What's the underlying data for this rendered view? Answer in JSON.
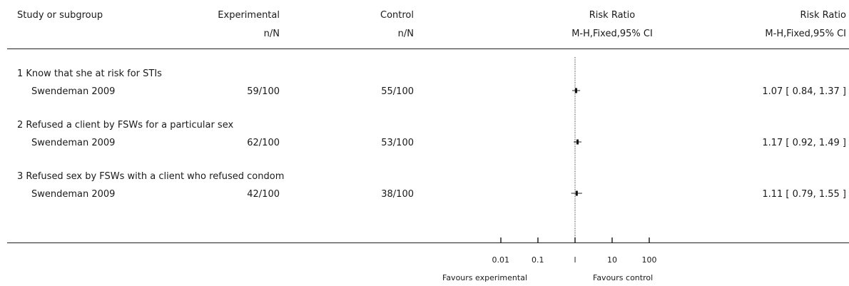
{
  "header": {
    "col_study": "Study or subgroup",
    "col_exp": "Experimental",
    "col_exp_sub": "n/N",
    "col_ctrl": "Control",
    "col_ctrl_sub": "n/N",
    "col_rr_plot": "Risk Ratio",
    "col_rr_plot_sub": "M-H,Fixed,95% CI",
    "col_rr": "Risk Ratio",
    "col_rr_sub": "M-H,Fixed,95% CI"
  },
  "chart_data": {
    "type": "forest",
    "scale": "log",
    "xlim": [
      0.01,
      100
    ],
    "ticks": [
      "0.01",
      "0.1",
      "1",
      "10",
      "100"
    ],
    "tick_labels": [
      "0.01",
      "0.1",
      "l",
      "10",
      "100"
    ],
    "favours_left": "Favours experimental",
    "favours_right": "Favours control",
    "subgroups": [
      {
        "label": "1 Know that she at risk for STIs",
        "study": "Swendeman 2009",
        "experimental": "59/100",
        "control": "55/100",
        "rr": 1.07,
        "lo": 0.84,
        "hi": 1.37,
        "rr_text": "1.07 [ 0.84, 1.37 ]"
      },
      {
        "label": "2 Refused a client by FSWs for a particular sex",
        "study": "Swendeman 2009",
        "experimental": "62/100",
        "control": "53/100",
        "rr": 1.17,
        "lo": 0.92,
        "hi": 1.49,
        "rr_text": "1.17 [ 0.92, 1.49 ]"
      },
      {
        "label": "3 Refused sex by FSWs with a client who refused condom",
        "study": "Swendeman 2009",
        "experimental": "42/100",
        "control": "38/100",
        "rr": 1.11,
        "lo": 0.79,
        "hi": 1.55,
        "rr_text": "1.11 [ 0.79, 1.55 ]"
      }
    ]
  }
}
